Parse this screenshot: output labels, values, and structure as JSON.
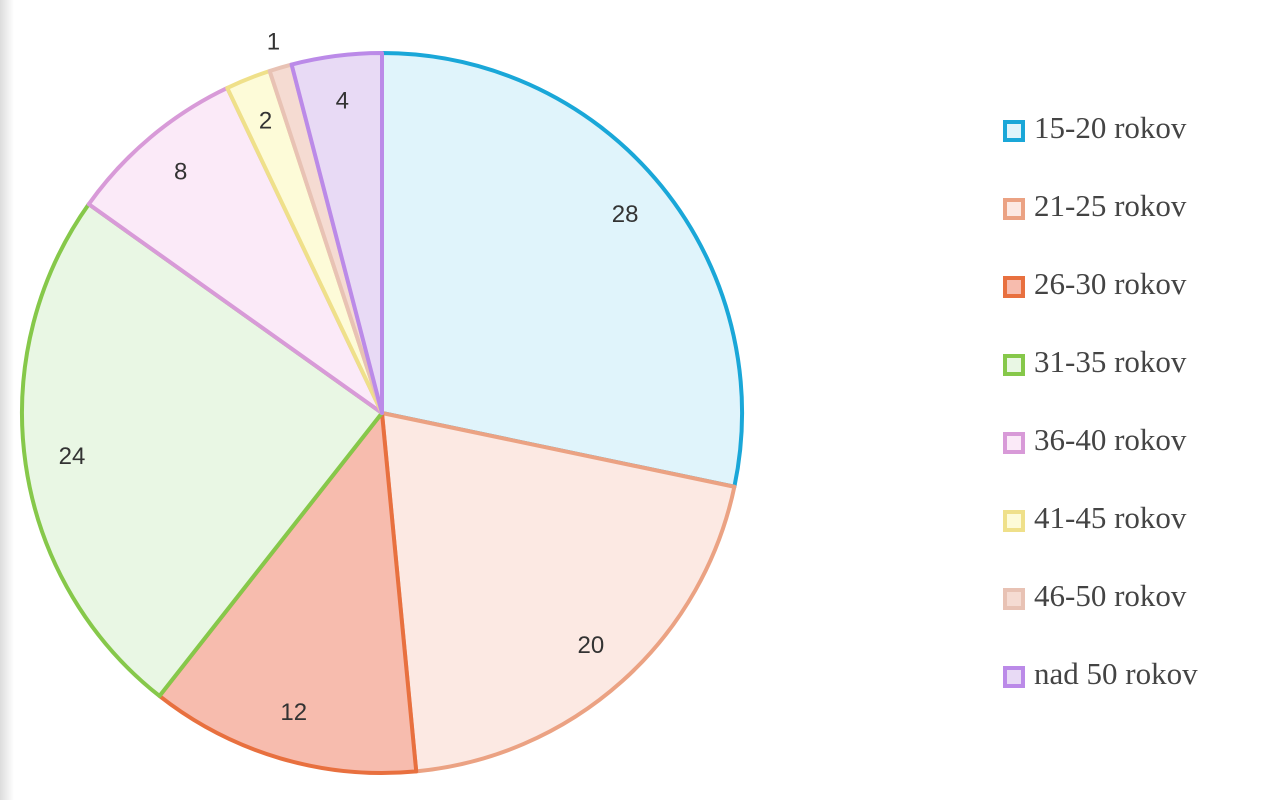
{
  "chart_data": {
    "type": "pie",
    "categories": [
      "15-20 rokov",
      "21-25 rokov",
      "26-30 rokov",
      "31-35 rokov",
      "36-40 rokov",
      "41-45 rokov",
      "46-50 rokov",
      "nad 50 rokov"
    ],
    "values": [
      28,
      20,
      12,
      24,
      8,
      2,
      1,
      4
    ],
    "colors": [
      "#1aa7d8",
      "#eba283",
      "#e8703f",
      "#86c84a",
      "#d89ad8",
      "#efe08a",
      "#e8c2b4",
      "#bb8ae8"
    ],
    "fill_colors": [
      "#e0f4fb",
      "#fce9e3",
      "#f7bcae",
      "#e9f7e4",
      "#fbeaf8",
      "#fdfbd8",
      "#f5dbd2",
      "#e8daf5"
    ],
    "legend": "right"
  }
}
